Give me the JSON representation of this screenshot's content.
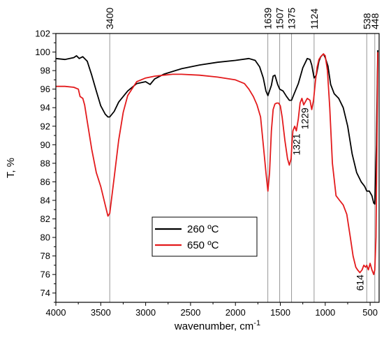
{
  "chart_data": {
    "type": "line",
    "xlabel": "wavenumber, cm",
    "xlabel_superscript": "-1",
    "ylabel": "T, %",
    "xlim": [
      4000,
      400
    ],
    "ylim": [
      73,
      102
    ],
    "x_ticks": [
      4000,
      3500,
      3000,
      2500,
      2000,
      1500,
      1000,
      500
    ],
    "y_ticks": [
      74,
      76,
      78,
      80,
      82,
      84,
      86,
      88,
      90,
      92,
      94,
      96,
      98,
      100,
      102
    ],
    "grid": false,
    "legend_position": "center-bottom",
    "series": [
      {
        "name": "260 ºC",
        "color": "#000000",
        "x": [
          4000,
          3900,
          3800,
          3770,
          3740,
          3700,
          3650,
          3600,
          3550,
          3500,
          3450,
          3420,
          3400,
          3350,
          3300,
          3200,
          3100,
          3000,
          2950,
          2900,
          2800,
          2600,
          2400,
          2200,
          2000,
          1850,
          1780,
          1730,
          1690,
          1660,
          1639,
          1600,
          1580,
          1560,
          1530,
          1507,
          1470,
          1430,
          1400,
          1375,
          1350,
          1300,
          1250,
          1200,
          1170,
          1150,
          1124,
          1100,
          1070,
          1050,
          1020,
          1000,
          970,
          940,
          900,
          850,
          800,
          750,
          700,
          650,
          600,
          560,
          538,
          510,
          480,
          460,
          448,
          430,
          415
        ],
        "y": [
          99.3,
          99.2,
          99.4,
          99.6,
          99.3,
          99.5,
          99.0,
          97.5,
          95.8,
          94.2,
          93.3,
          93.0,
          93.0,
          93.6,
          94.6,
          95.8,
          96.6,
          96.8,
          96.5,
          97.1,
          97.6,
          98.2,
          98.6,
          98.9,
          99.1,
          99.3,
          99.1,
          98.4,
          97.2,
          95.8,
          95.3,
          96.4,
          97.4,
          97.5,
          96.5,
          96.0,
          95.8,
          95.2,
          94.8,
          94.8,
          95.4,
          96.6,
          98.3,
          99.3,
          99.2,
          98.6,
          97.2,
          97.5,
          99.0,
          99.5,
          99.8,
          99.4,
          98.5,
          96.5,
          95.5,
          95.0,
          94.0,
          92.0,
          89.0,
          87.0,
          86.0,
          85.5,
          85.0,
          85.0,
          84.5,
          83.7,
          83.6,
          90.0,
          100.2
        ]
      },
      {
        "name": "650 ºC",
        "color": "#e31a1c",
        "x": [
          4000,
          3900,
          3800,
          3750,
          3730,
          3700,
          3680,
          3650,
          3600,
          3550,
          3500,
          3450,
          3420,
          3400,
          3350,
          3300,
          3250,
          3200,
          3100,
          3000,
          2900,
          2800,
          2700,
          2600,
          2400,
          2200,
          2000,
          1900,
          1850,
          1800,
          1760,
          1720,
          1690,
          1660,
          1639,
          1620,
          1600,
          1580,
          1560,
          1540,
          1520,
          1500,
          1480,
          1450,
          1420,
          1400,
          1380,
          1370,
          1360,
          1340,
          1321,
          1300,
          1280,
          1260,
          1240,
          1229,
          1200,
          1170,
          1150,
          1130,
          1110,
          1090,
          1070,
          1050,
          1020,
          1000,
          975,
          950,
          920,
          880,
          840,
          800,
          760,
          720,
          690,
          660,
          640,
          614,
          590,
          570,
          550,
          538,
          520,
          500,
          480,
          460,
          448,
          435,
          425,
          415
        ],
        "y": [
          96.3,
          96.3,
          96.2,
          96.0,
          95.2,
          95.0,
          94.3,
          92.5,
          89.5,
          87.0,
          85.5,
          83.5,
          82.3,
          82.6,
          86.5,
          90.5,
          93.5,
          95.3,
          96.8,
          97.2,
          97.4,
          97.5,
          97.6,
          97.6,
          97.5,
          97.3,
          97.0,
          96.6,
          96.0,
          95.2,
          94.3,
          93.0,
          90.0,
          87.0,
          85.0,
          87.0,
          91.5,
          93.8,
          94.4,
          94.5,
          94.5,
          94.2,
          93.0,
          90.5,
          88.5,
          87.8,
          88.5,
          90.2,
          91.5,
          92.0,
          91.5,
          92.8,
          94.5,
          95.0,
          94.3,
          94.5,
          95.0,
          94.8,
          93.8,
          94.8,
          96.8,
          98.4,
          99.2,
          99.5,
          99.8,
          99.6,
          98.0,
          94.0,
          88.0,
          84.5,
          84.0,
          83.5,
          82.5,
          80.0,
          78.0,
          76.8,
          76.5,
          76.2,
          76.5,
          77.0,
          76.8,
          77.0,
          76.5,
          77.2,
          76.5,
          76.0,
          76.5,
          80.0,
          90.0,
          100.0
        ]
      }
    ],
    "peak_lines": [
      {
        "x": 3400,
        "label": "3400"
      },
      {
        "x": 1639,
        "label": "1639"
      },
      {
        "x": 1507,
        "label": "1507"
      },
      {
        "x": 1375,
        "label": "1375"
      },
      {
        "x": 1124,
        "label": "1124"
      },
      {
        "x": 538,
        "label": "538"
      },
      {
        "x": 448,
        "label": "448"
      }
    ],
    "annotations": [
      {
        "x": 1321,
        "y": 91.2,
        "label": "1321"
      },
      {
        "x": 1229,
        "y": 94.0,
        "label": "1229"
      },
      {
        "x": 614,
        "y": 76.0,
        "label": "614"
      }
    ]
  }
}
